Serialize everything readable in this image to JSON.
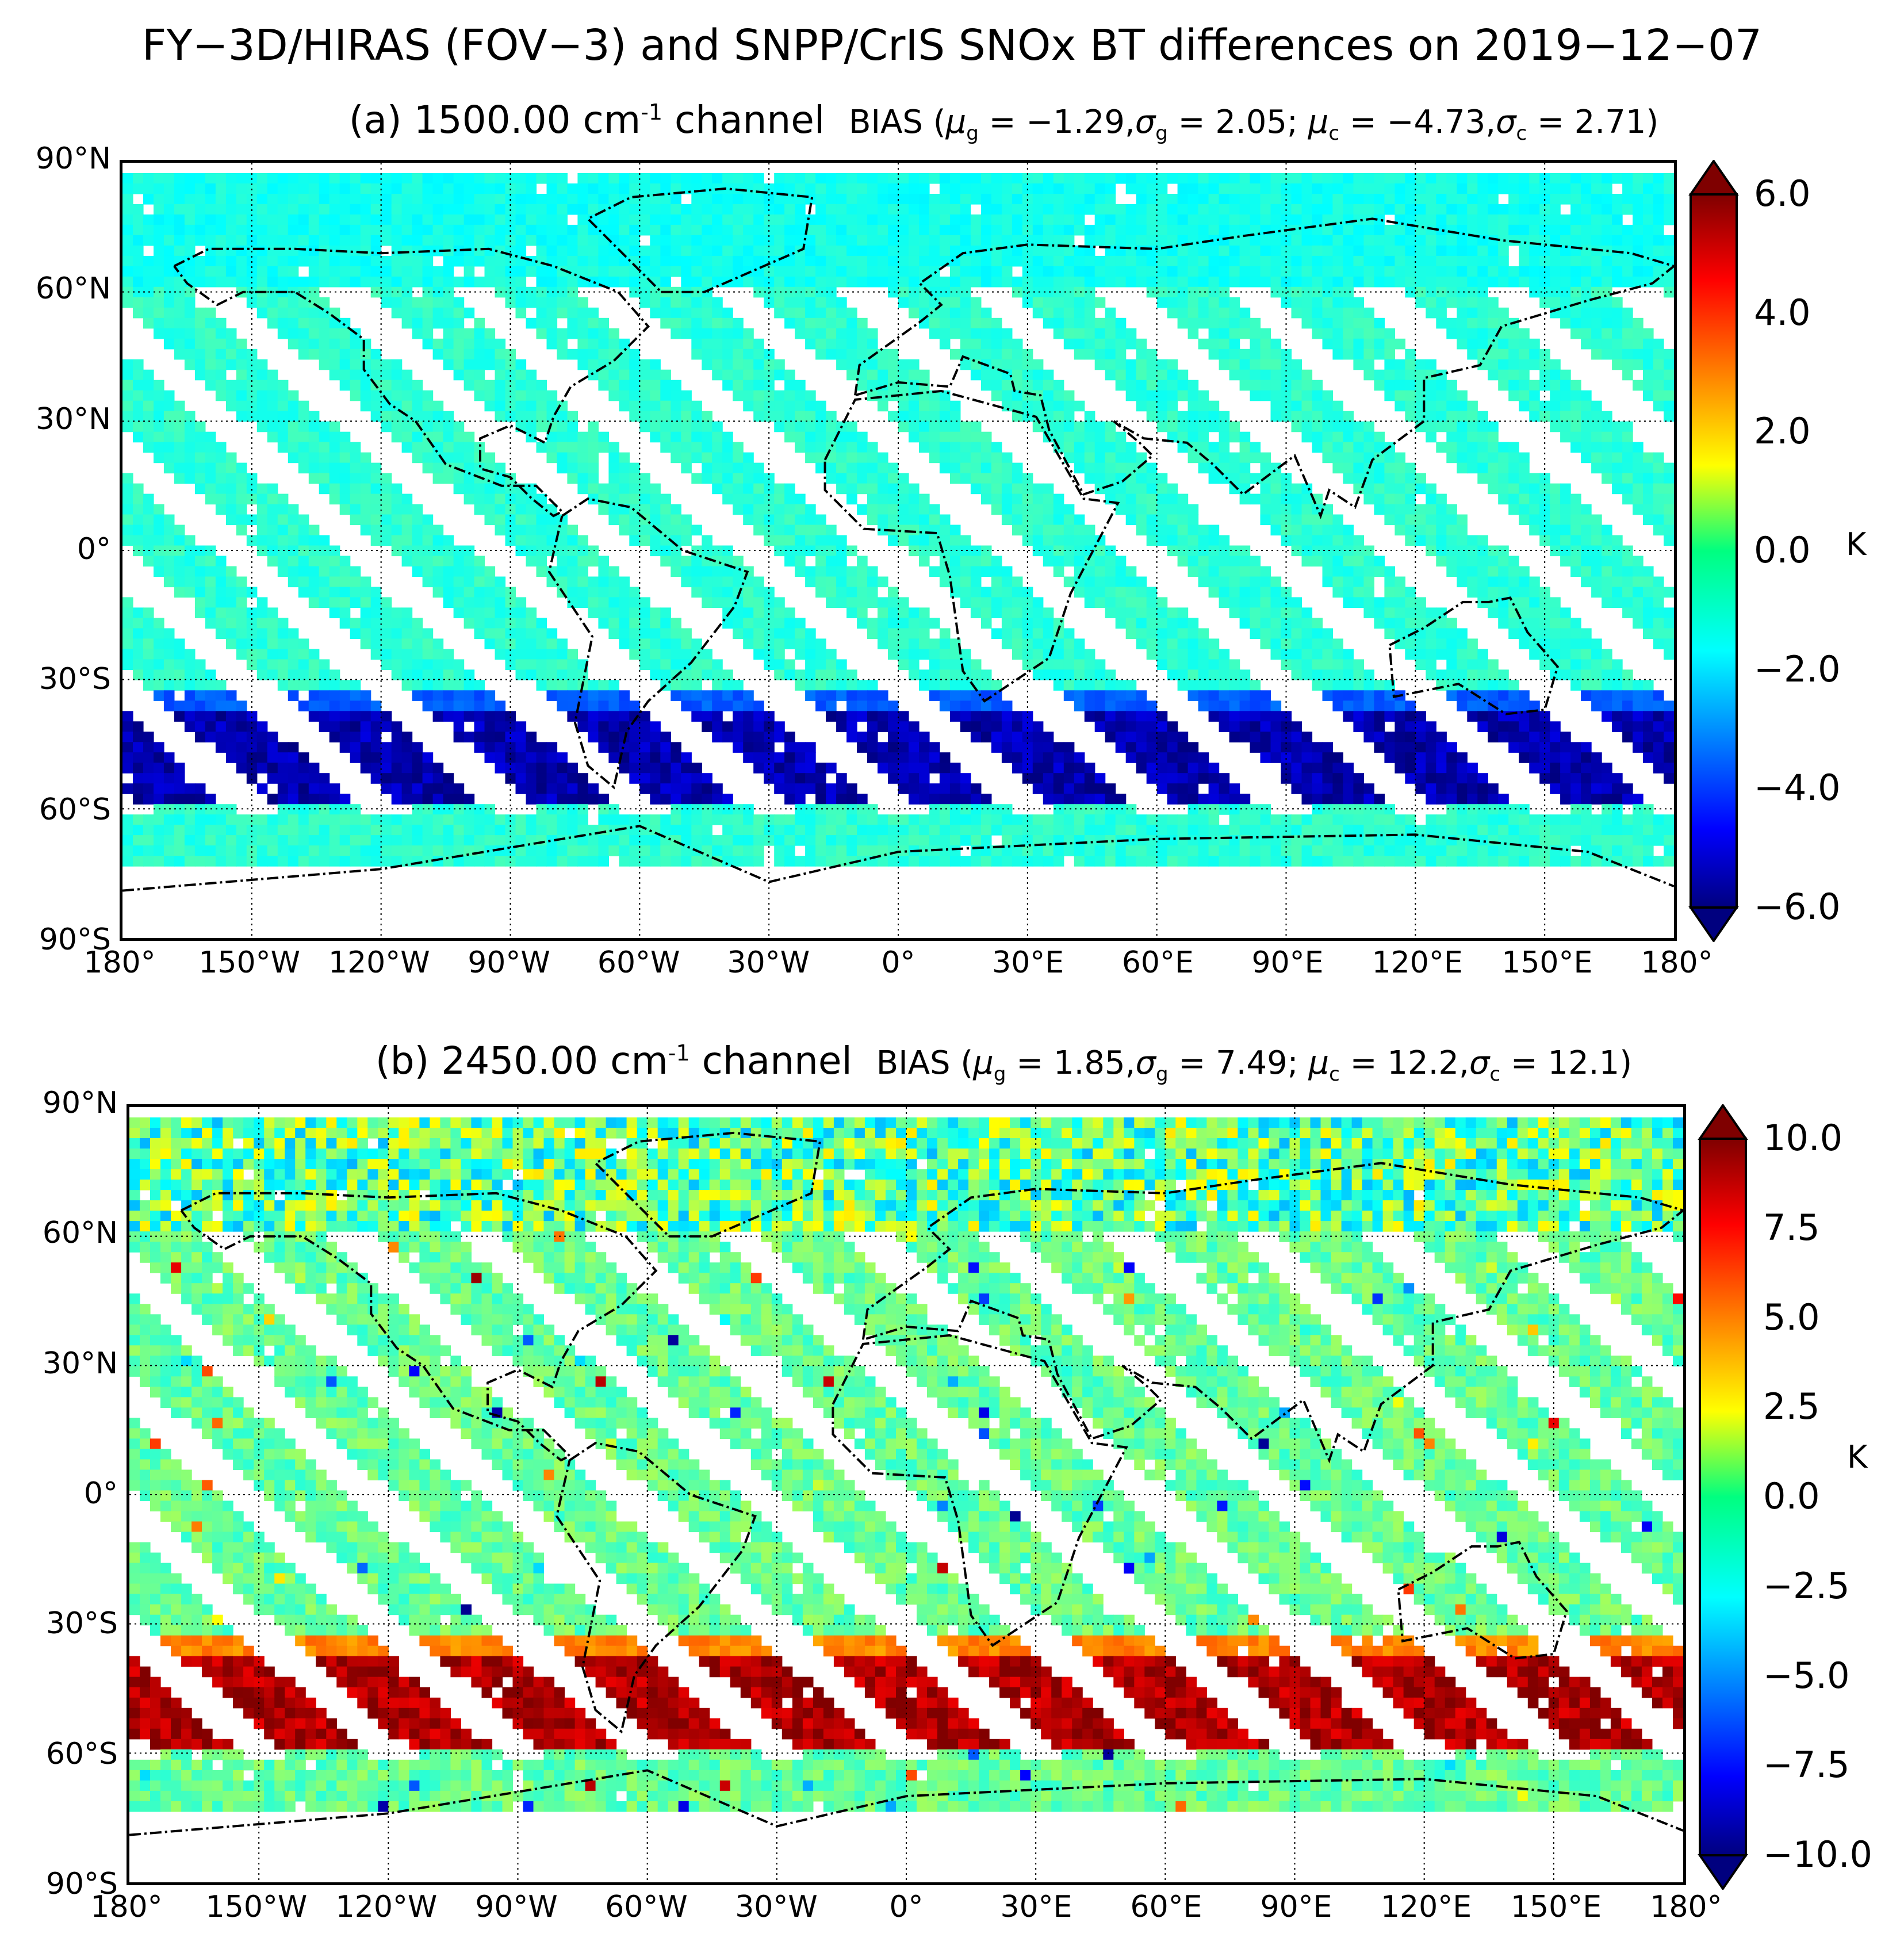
{
  "figure": {
    "title": "FY−3D/HIRAS (FOV−3) and SNPP/CrIS SNOx BT differences on 2019−12−07"
  },
  "chart_data": [
    {
      "type": "heatmap",
      "panel_label": "(a) 1500.00 cm",
      "superscript": "-1",
      "channel_word": "channel",
      "bias_label": "BIAS (",
      "mu_g": "μ",
      "mu_g_sub": "g",
      "mu_g_val": " = −1.29,",
      "sigma_g": "σ",
      "sigma_g_sub": "g",
      "sigma_g_val": " = 2.05; ",
      "mu_c": "μ",
      "mu_c_sub": "c",
      "mu_c_val": " = −4.73,",
      "sigma_c": "σ",
      "sigma_c_sub": "c",
      "sigma_c_val": " = 2.71)",
      "x_ticks": [
        "180°",
        "150°W",
        "120°W",
        "90°W",
        "60°W",
        "30°W",
        "0°",
        "30°E",
        "60°E",
        "90°E",
        "120°E",
        "150°E",
        "180°"
      ],
      "y_ticks": [
        "90°N",
        "60°N",
        "30°N",
        "0°",
        "30°S",
        "60°S",
        "90°S"
      ],
      "colorbar_ticks": [
        "6.0",
        "4.0",
        "2.0",
        "0.0",
        "−2.0",
        "−4.0",
        "−6.0"
      ],
      "colorbar_range": [
        -6,
        6
      ],
      "unit": "K",
      "field_description": {
        "background_value": -1.0,
        "north_polar_value": -1.3,
        "southern_band_value": -5.8,
        "southern_band_lat": [
          -60,
          -33
        ],
        "data_lat_range": [
          -74,
          88
        ]
      }
    },
    {
      "type": "heatmap",
      "panel_label": "(b) 2450.00 cm",
      "superscript": "-1",
      "channel_word": "channel",
      "bias_label": "BIAS (",
      "mu_g": "μ",
      "mu_g_sub": "g",
      "mu_g_val": " = 1.85,",
      "sigma_g": "σ",
      "sigma_g_sub": "g",
      "sigma_g_val": " = 7.49; ",
      "mu_c": "μ",
      "mu_c_sub": "c",
      "mu_c_val": " = 12.2,",
      "sigma_c": "σ",
      "sigma_c_sub": "c",
      "sigma_c_val": " = 12.1)",
      "x_ticks": [
        "180°",
        "150°W",
        "120°W",
        "90°W",
        "60°W",
        "30°W",
        "0°",
        "30°E",
        "60°E",
        "90°E",
        "120°E",
        "150°E",
        "180°"
      ],
      "y_ticks": [
        "90°N",
        "60°N",
        "30°N",
        "0°",
        "30°S",
        "60°S",
        "90°S"
      ],
      "colorbar_ticks": [
        "10.0",
        "7.5",
        "5.0",
        "2.5",
        "0.0",
        "−2.5",
        "−5.0",
        "−7.5",
        "−10.0"
      ],
      "colorbar_range": [
        -10,
        10
      ],
      "unit": "K",
      "field_description": {
        "background_value": -0.5,
        "north_polar_value": -0.5,
        "southern_band_value": 10.0,
        "southern_band_lat": [
          -60,
          -33
        ],
        "data_lat_range": [
          -74,
          88
        ]
      }
    }
  ]
}
